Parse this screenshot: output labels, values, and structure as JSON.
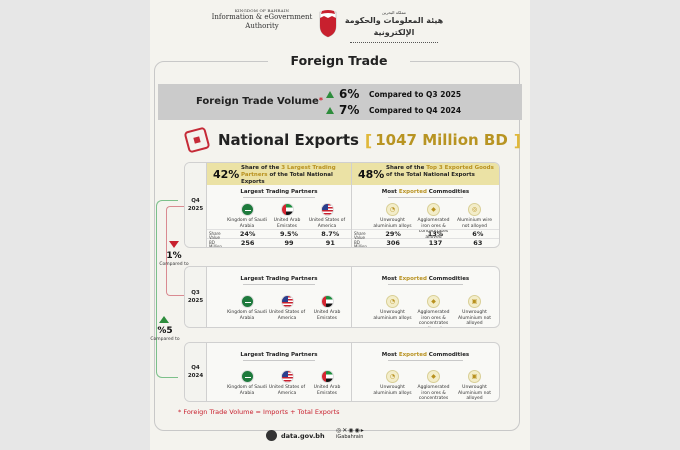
{
  "header": {
    "kingdom": "KINGDOM OF BAHRAIN",
    "authority_line1": "Information & eGovernment",
    "authority_line2": "Authority",
    "arabic_small": "مملكة البحرين",
    "arabic_name": "هيئة المعلومات والحكومة الإلكترونية"
  },
  "title": "Foreign Trade",
  "volume": {
    "label": "Foreign Trade Volume",
    "star": "*",
    "rows": [
      {
        "pct": "6%",
        "text": "Compared to Q3 2025"
      },
      {
        "pct": "7%",
        "text": "Compared to Q4 2024"
      }
    ]
  },
  "exports": {
    "title": "National Exports",
    "bracket_open": "[",
    "value": "1047 Million BD",
    "bracket_close": "]"
  },
  "q4_2025": {
    "period": [
      "Q4",
      "2025"
    ],
    "partners_pct": "42%",
    "partners_desc_a": "Share of the ",
    "partners_desc_b": "3 Largest Trading Partners",
    "partners_desc_c": " of the Total National Exports",
    "goods_pct": "48%",
    "goods_desc_a": "Share of the ",
    "goods_desc_b": "Top 3 Exported Goods",
    "goods_desc_c": " of the Total National Exports",
    "partners_title": "Largest Trading Partners",
    "goods_title_a": "Most ",
    "goods_title_b": "Exported",
    "goods_title_c": " Commodities",
    "partners": [
      {
        "name": "Kingdom of Saudi Arabia",
        "flag": "sa",
        "share": "24%",
        "value": "256"
      },
      {
        "name": "United Arab Emirates",
        "flag": "ae",
        "share": "9.5%",
        "value": "99"
      },
      {
        "name": "United States of America",
        "flag": "us",
        "share": "8.7%",
        "value": "91"
      }
    ],
    "goods": [
      {
        "name": "Unwrought aluminium alloys",
        "share": "29%",
        "value": "306"
      },
      {
        "name": "Agglomerated iron ores & concentrates alloyed",
        "share": "13%",
        "value": "137"
      },
      {
        "name": "Aluminium wire not alloyed",
        "share": "6%",
        "value": "63"
      }
    ],
    "share_label": "Share",
    "value_label": "Value BD Million"
  },
  "change_q3": {
    "value": "1%",
    "label": "Compared to"
  },
  "change_q4": {
    "value": "%5",
    "label": "Compared to"
  },
  "q3_2025": {
    "period": [
      "Q3",
      "2025"
    ],
    "partners_title": "Largest Trading Partners",
    "goods_title_a": "Most ",
    "goods_title_b": "Exported",
    "goods_title_c": " Commodities",
    "partners": [
      {
        "name": "Kingdom of Saudi Arabia",
        "flag": "sa"
      },
      {
        "name": "United States of America",
        "flag": "us"
      },
      {
        "name": "United Arab Emirates",
        "flag": "ae"
      }
    ],
    "goods": [
      {
        "name": "Unwrought aluminium alloys"
      },
      {
        "name": "Agglomerated iron ores & concentrates alloyed"
      },
      {
        "name": "Unwrought Aluminium not alloyed"
      }
    ]
  },
  "q4_2024": {
    "period": [
      "Q4",
      "2024"
    ],
    "partners_title": "Largest Trading Partners",
    "goods_title_a": "Most ",
    "goods_title_b": "Exported",
    "goods_title_c": " Commodities",
    "partners": [
      {
        "name": "Kingdom of Saudi Arabia",
        "flag": "sa"
      },
      {
        "name": "United States of America",
        "flag": "us"
      },
      {
        "name": "United Arab Emirates",
        "flag": "ae"
      }
    ],
    "goods": [
      {
        "name": "Unwrought aluminium alloys"
      },
      {
        "name": "Agglomerated iron ores & concentrates alloyed"
      },
      {
        "name": "Unwrought Aluminium not alloyed"
      }
    ]
  },
  "note": "*  Foreign Trade Volume = Imports + Total Exports",
  "footer": {
    "site": "data.gov.bh",
    "social_icons": "◎✕◉◉▸",
    "handle": "iGabahrain"
  },
  "colors": {
    "accent_gold": "#e0b83a",
    "up_green": "#2d8c3c",
    "down_red": "#c8202e",
    "band_gray": "#cbcbcb"
  }
}
